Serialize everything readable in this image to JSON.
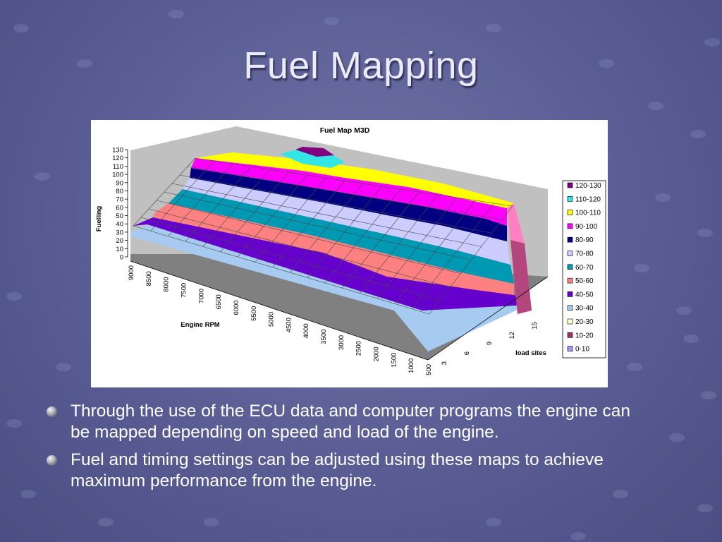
{
  "slide": {
    "title": "Fuel Mapping",
    "bullets": [
      "Through the use of the ECU data and computer programs the engine can be mapped depending on speed and load of the engine.",
      "Fuel and timing settings can be adjusted using these maps to achieve maximum performance from the engine."
    ],
    "bullet_icon": "sphere-bullet-icon",
    "colors": {
      "background": "#595d93",
      "title": "#ecebfa",
      "text": "#ffffff"
    }
  },
  "chart_data": {
    "type": "surface",
    "title": "Fuel Map M3D",
    "zlabel": "Fuelling",
    "xlabel": "Engine RPM",
    "ylabel": "load sites",
    "z_ticks": [
      "0",
      "10",
      "20",
      "30",
      "40",
      "50",
      "60",
      "70",
      "80",
      "90",
      "100",
      "110",
      "120",
      "130"
    ],
    "rpm_ticks": [
      "9000",
      "8500",
      "8000",
      "7500",
      "7000",
      "6500",
      "6000",
      "5500",
      "5000",
      "4500",
      "4000",
      "3500",
      "3000",
      "2500",
      "2000",
      "1500",
      "1000",
      "500"
    ],
    "load_ticks": [
      "3",
      "6",
      "9",
      "12",
      "15"
    ],
    "zlim": [
      0,
      130
    ],
    "legend": [
      {
        "label": "120-130",
        "color": "#800080"
      },
      {
        "label": "110-120",
        "color": "#33e6e6"
      },
      {
        "label": "100-110",
        "color": "#ffff00"
      },
      {
        "label": "90-100",
        "color": "#ff00ff"
      },
      {
        "label": "80-90",
        "color": "#000080"
      },
      {
        "label": "70-80",
        "color": "#ccccff"
      },
      {
        "label": "60-70",
        "color": "#0099b3"
      },
      {
        "label": "50-60",
        "color": "#ff8080"
      },
      {
        "label": "40-50",
        "color": "#6600cc"
      },
      {
        "label": "30-40",
        "color": "#a6caf0"
      },
      {
        "label": "20-30",
        "color": "#ffffcc"
      },
      {
        "label": "10-20",
        "color": "#993366"
      },
      {
        "label": "0-10",
        "color": "#9999ff"
      }
    ],
    "legend_position": "right"
  }
}
